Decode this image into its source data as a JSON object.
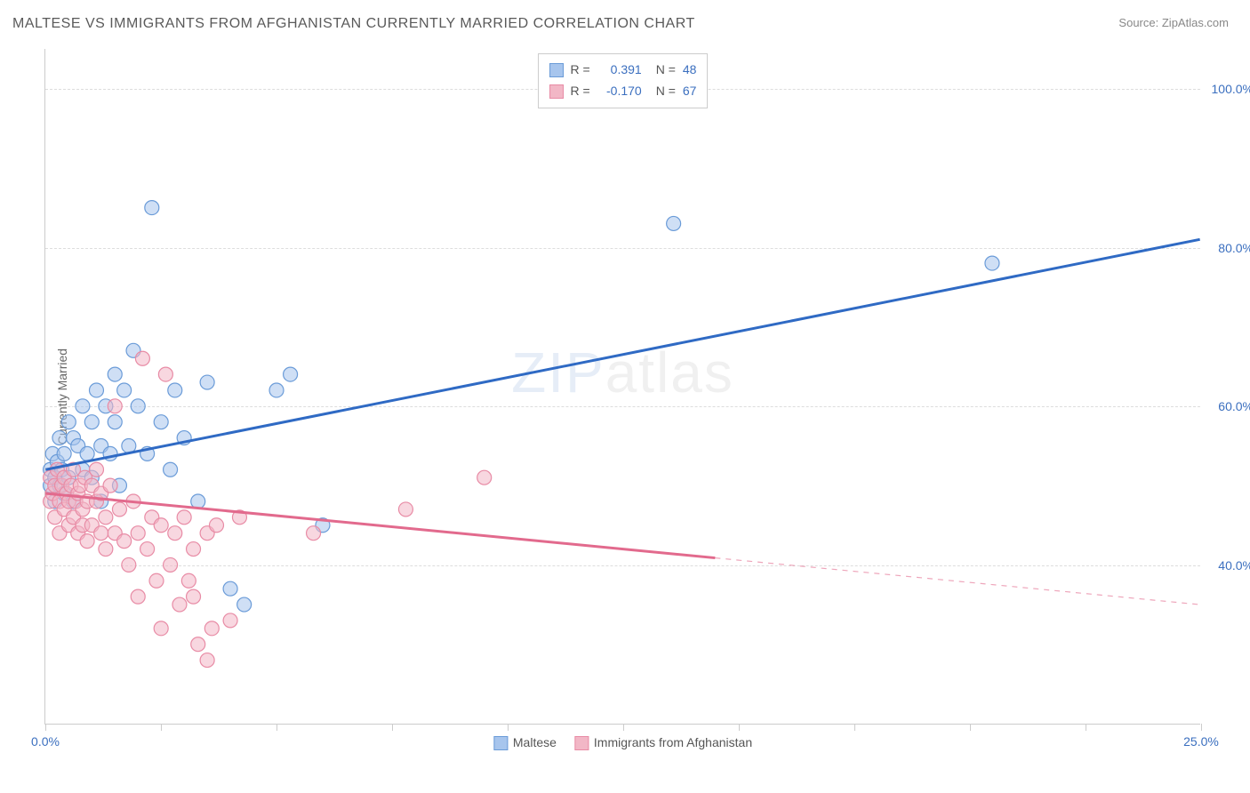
{
  "title": "MALTESE VS IMMIGRANTS FROM AFGHANISTAN CURRENTLY MARRIED CORRELATION CHART",
  "source_label": "Source:",
  "source_value": "ZipAtlas.com",
  "ylabel": "Currently Married",
  "watermark_zip": "ZIP",
  "watermark_atlas": "atlas",
  "chart": {
    "type": "scatter",
    "xlim": [
      0,
      25
    ],
    "ylim": [
      20,
      105
    ],
    "background_color": "#ffffff",
    "grid_color": "#dddddd",
    "axis_color": "#cccccc",
    "tick_label_color": "#3b6fbf",
    "yticks": [
      40,
      60,
      80,
      100
    ],
    "ytick_labels": [
      "40.0%",
      "60.0%",
      "80.0%",
      "100.0%"
    ],
    "xticks": [
      0,
      2.5,
      5,
      7.5,
      10,
      12.5,
      15,
      17.5,
      20,
      22.5,
      25
    ],
    "xtick_labels": {
      "0": "0.0%",
      "25": "25.0%"
    },
    "marker_radius": 8,
    "marker_stroke_width": 1.2,
    "line_width": 3,
    "series": [
      {
        "name": "Maltese",
        "fill_color": "#a7c5ed",
        "stroke_color": "#6a9bd8",
        "fill_opacity": 0.55,
        "line_color": "#2f6ac4",
        "R": "0.391",
        "N": "48",
        "trend": {
          "x1": 0,
          "y1": 52,
          "x2": 25,
          "y2": 81,
          "solid_x_end": 25
        },
        "points": [
          [
            0.1,
            52
          ],
          [
            0.1,
            50
          ],
          [
            0.15,
            54
          ],
          [
            0.2,
            51
          ],
          [
            0.2,
            48
          ],
          [
            0.25,
            53
          ],
          [
            0.3,
            56
          ],
          [
            0.3,
            50
          ],
          [
            0.35,
            52
          ],
          [
            0.4,
            49
          ],
          [
            0.4,
            54
          ],
          [
            0.5,
            58
          ],
          [
            0.5,
            51
          ],
          [
            0.6,
            56
          ],
          [
            0.6,
            48
          ],
          [
            0.7,
            55
          ],
          [
            0.8,
            52
          ],
          [
            0.8,
            60
          ],
          [
            0.9,
            54
          ],
          [
            1.0,
            58
          ],
          [
            1.0,
            51
          ],
          [
            1.1,
            62
          ],
          [
            1.2,
            55
          ],
          [
            1.2,
            48
          ],
          [
            1.3,
            60
          ],
          [
            1.4,
            54
          ],
          [
            1.5,
            58
          ],
          [
            1.5,
            64
          ],
          [
            1.6,
            50
          ],
          [
            1.7,
            62
          ],
          [
            1.8,
            55
          ],
          [
            1.9,
            67
          ],
          [
            2.0,
            60
          ],
          [
            2.2,
            54
          ],
          [
            2.3,
            85
          ],
          [
            2.5,
            58
          ],
          [
            2.7,
            52
          ],
          [
            2.8,
            62
          ],
          [
            3.0,
            56
          ],
          [
            3.3,
            48
          ],
          [
            3.5,
            63
          ],
          [
            4.0,
            37
          ],
          [
            4.3,
            35
          ],
          [
            5.0,
            62
          ],
          [
            5.3,
            64
          ],
          [
            6.0,
            45
          ],
          [
            13.6,
            83
          ],
          [
            20.5,
            78
          ]
        ]
      },
      {
        "name": "Immigrants from Afghanistan",
        "fill_color": "#f2b7c6",
        "stroke_color": "#e88ba5",
        "fill_opacity": 0.55,
        "line_color": "#e26a8d",
        "R": "-0.170",
        "N": "67",
        "trend": {
          "x1": 0,
          "y1": 49,
          "x2": 25,
          "y2": 35,
          "solid_x_end": 14.5
        },
        "points": [
          [
            0.1,
            48
          ],
          [
            0.1,
            51
          ],
          [
            0.15,
            49
          ],
          [
            0.2,
            50
          ],
          [
            0.2,
            46
          ],
          [
            0.25,
            52
          ],
          [
            0.3,
            48
          ],
          [
            0.3,
            44
          ],
          [
            0.35,
            50
          ],
          [
            0.4,
            47
          ],
          [
            0.4,
            51
          ],
          [
            0.45,
            49
          ],
          [
            0.5,
            45
          ],
          [
            0.5,
            48
          ],
          [
            0.55,
            50
          ],
          [
            0.6,
            46
          ],
          [
            0.6,
            52
          ],
          [
            0.65,
            48
          ],
          [
            0.7,
            44
          ],
          [
            0.7,
            49
          ],
          [
            0.75,
            50
          ],
          [
            0.8,
            45
          ],
          [
            0.8,
            47
          ],
          [
            0.85,
            51
          ],
          [
            0.9,
            48
          ],
          [
            0.9,
            43
          ],
          [
            1.0,
            50
          ],
          [
            1.0,
            45
          ],
          [
            1.1,
            48
          ],
          [
            1.1,
            52
          ],
          [
            1.2,
            44
          ],
          [
            1.2,
            49
          ],
          [
            1.3,
            46
          ],
          [
            1.3,
            42
          ],
          [
            1.4,
            50
          ],
          [
            1.5,
            44
          ],
          [
            1.5,
            60
          ],
          [
            1.6,
            47
          ],
          [
            1.7,
            43
          ],
          [
            1.8,
            40
          ],
          [
            1.9,
            48
          ],
          [
            2.0,
            44
          ],
          [
            2.0,
            36
          ],
          [
            2.1,
            66
          ],
          [
            2.2,
            42
          ],
          [
            2.3,
            46
          ],
          [
            2.4,
            38
          ],
          [
            2.5,
            32
          ],
          [
            2.5,
            45
          ],
          [
            2.6,
            64
          ],
          [
            2.7,
            40
          ],
          [
            2.8,
            44
          ],
          [
            2.9,
            35
          ],
          [
            3.0,
            46
          ],
          [
            3.1,
            38
          ],
          [
            3.2,
            42
          ],
          [
            3.2,
            36
          ],
          [
            3.3,
            30
          ],
          [
            3.5,
            44
          ],
          [
            3.6,
            32
          ],
          [
            3.5,
            28
          ],
          [
            3.7,
            45
          ],
          [
            4.0,
            33
          ],
          [
            4.2,
            46
          ],
          [
            5.8,
            44
          ],
          [
            7.8,
            47
          ],
          [
            9.5,
            51
          ]
        ]
      }
    ]
  },
  "legend_bottom": {
    "items": [
      {
        "swatch_fill": "#a7c5ed",
        "swatch_stroke": "#6a9bd8",
        "label": "Maltese"
      },
      {
        "swatch_fill": "#f2b7c6",
        "swatch_stroke": "#e88ba5",
        "label": "Immigrants from Afghanistan"
      }
    ]
  },
  "legend_top": {
    "label_color": "#555555",
    "value_color": "#3b6fbf",
    "R_label": "R =",
    "N_label": "N ="
  }
}
